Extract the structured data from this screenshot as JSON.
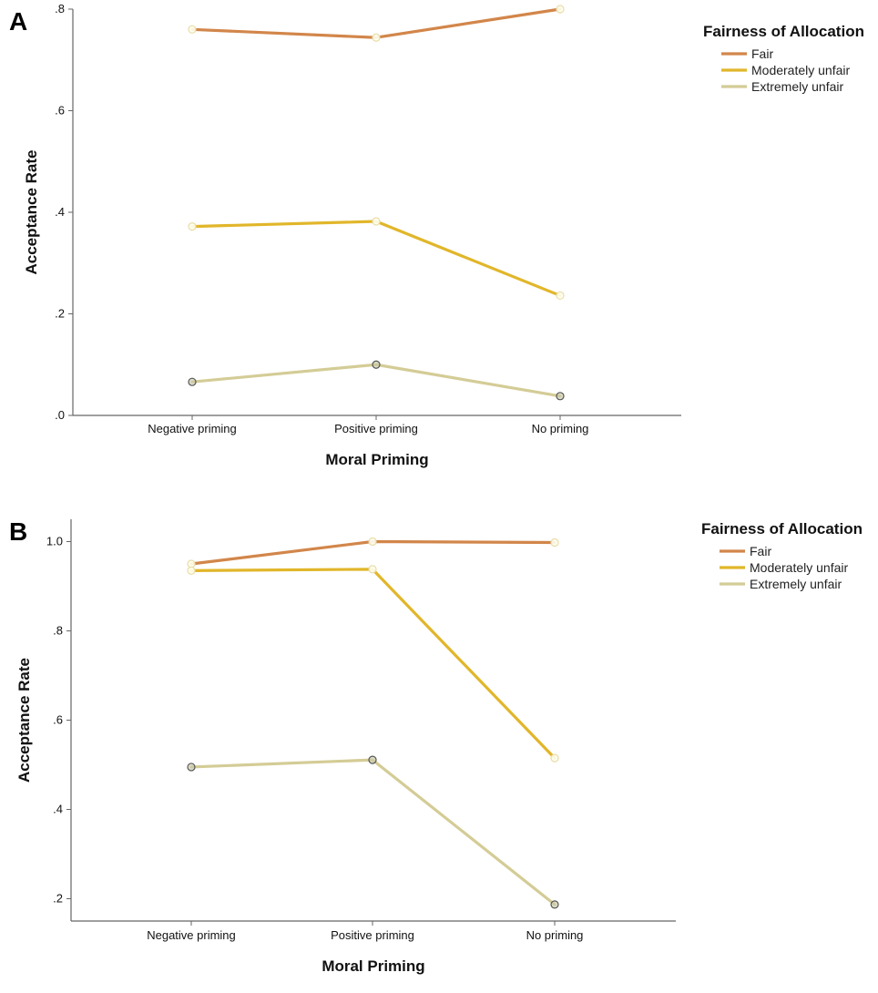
{
  "chart_data": [
    {
      "panel_label": "A",
      "type": "line",
      "categories": [
        "Negative priming",
        "Positive priming",
        "No priming"
      ],
      "xlabel": "Moral Priming",
      "ylabel": "Acceptance Rate",
      "ylim": [
        0,
        0.8
      ],
      "yticks": [
        0,
        0.2,
        0.4,
        0.6,
        0.8
      ],
      "ytick_labels": [
        ".0",
        ".2",
        ".4",
        ".6",
        ".8"
      ],
      "legend_title": "Fairness of Allocation",
      "legend_position": "top-right",
      "grid": false,
      "series": [
        {
          "name": "Fair",
          "color": "#D2864A",
          "values": [
            0.76,
            0.744,
            0.8
          ]
        },
        {
          "name": "Moderately unfair",
          "color": "#E1B62A",
          "values": [
            0.372,
            0.382,
            0.236
          ]
        },
        {
          "name": "Extremely unfair",
          "color": "#D4CC96",
          "values": [
            0.066,
            0.1,
            0.038
          ]
        }
      ]
    },
    {
      "panel_label": "B",
      "type": "line",
      "categories": [
        "Negative priming",
        "Positive priming",
        "No priming"
      ],
      "xlabel": "Moral Priming",
      "ylabel": "Acceptance Rate",
      "ylim": [
        0.15,
        1.05
      ],
      "yticks": [
        0.2,
        0.4,
        0.6,
        0.8,
        1.0
      ],
      "ytick_labels": [
        ".2",
        ".4",
        ".6",
        ".8",
        "1.0"
      ],
      "legend_title": "Fairness of Allocation",
      "legend_position": "top-right",
      "grid": false,
      "series": [
        {
          "name": "Fair",
          "color": "#D2864A",
          "values": [
            0.95,
            1.0,
            0.998
          ]
        },
        {
          "name": "Moderately unfair",
          "color": "#E1B62A",
          "values": [
            0.935,
            0.938,
            0.515
          ]
        },
        {
          "name": "Extremely unfair",
          "color": "#D4CC96",
          "values": [
            0.495,
            0.511,
            0.187
          ]
        }
      ]
    }
  ]
}
